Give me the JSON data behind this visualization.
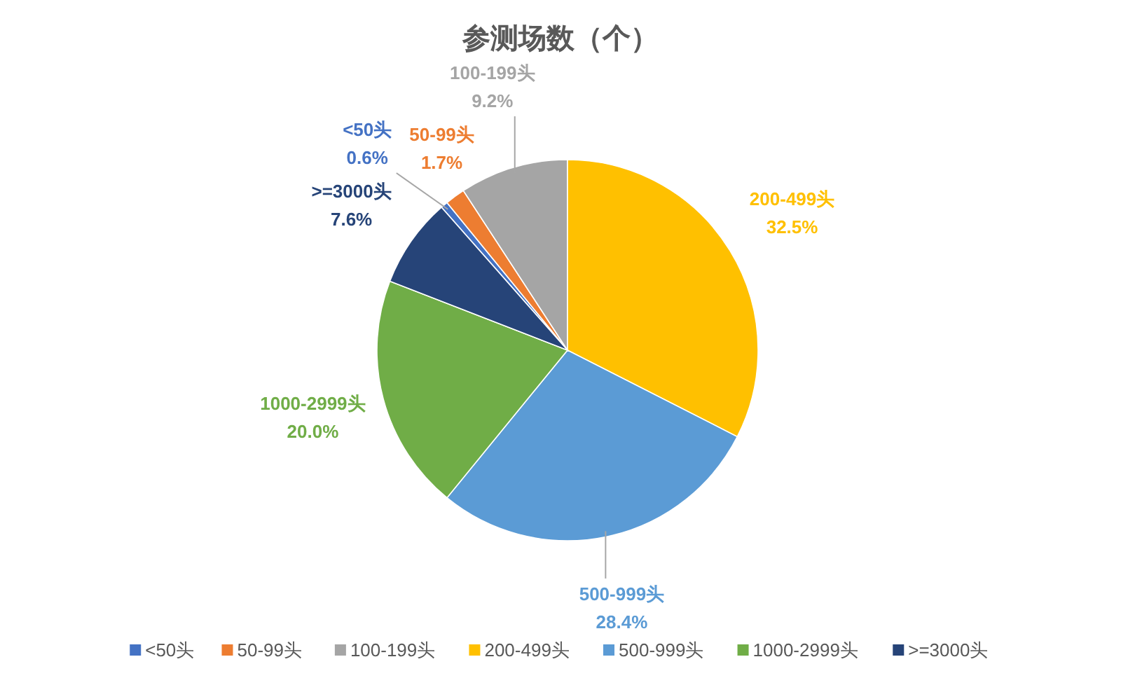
{
  "chart_data": {
    "type": "pie",
    "title": "参测场数（个）",
    "categories": [
      "<50头",
      "50-99头",
      "100-199头",
      "200-499头",
      "500-999头",
      "1000-2999头",
      ">=3000头"
    ],
    "values": [
      0.6,
      1.7,
      9.2,
      32.5,
      28.4,
      20.0,
      7.6
    ],
    "colors": [
      "#4472c4",
      "#ed7d31",
      "#a5a5a5",
      "#ffc000",
      "#5b9bd5",
      "#70ad47",
      "#264478"
    ],
    "value_labels": [
      "0.6%",
      "1.7%",
      "9.2%",
      "32.5%",
      "28.4%",
      "20.0%",
      "7.6%"
    ],
    "legend": "bottom"
  }
}
